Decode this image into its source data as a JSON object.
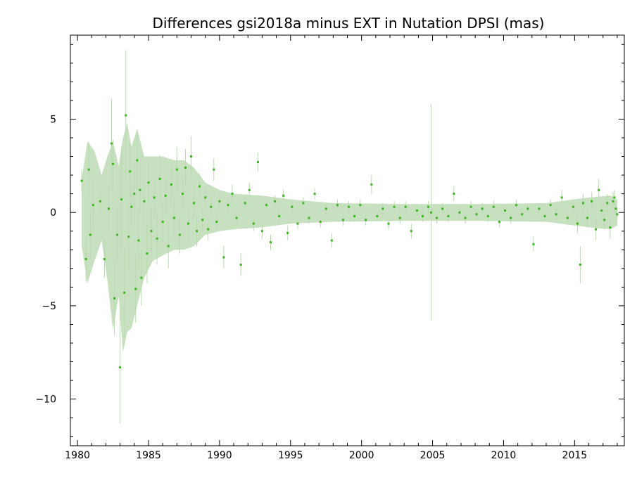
{
  "chart_data": {
    "type": "scatter",
    "title": "Differences gsi2018a minus EXT in Nutation DPSI (mas)",
    "xlabel": "",
    "ylabel": "",
    "xlim": [
      1979.5,
      2018.5
    ],
    "ylim": [
      -12.5,
      9.5
    ],
    "x_ticks": [
      1980,
      1985,
      1990,
      1995,
      2000,
      2005,
      2010,
      2015
    ],
    "x_tick_labels": [
      "1980",
      "1985",
      "1990",
      "1995",
      "2000",
      "2005",
      "2010",
      "2015"
    ],
    "y_ticks": [
      -10,
      -5,
      0,
      5
    ],
    "y_tick_labels": [
      "−10",
      "−5",
      "0",
      "5"
    ],
    "grid": false,
    "legend": "none",
    "colors": {
      "point": "#3cb521",
      "error_bar": "#b9d9b0"
    },
    "envelope": [
      [
        1980.3,
        -1.8,
        1.8
      ],
      [
        1980.7,
        -3.8,
        3.8
      ],
      [
        1981.2,
        -2.6,
        3.3
      ],
      [
        1981.7,
        -1.5,
        2.0
      ],
      [
        1982.1,
        -3.6,
        3.0
      ],
      [
        1982.5,
        -6.3,
        3.8
      ],
      [
        1982.9,
        -4.5,
        2.5
      ],
      [
        1983.2,
        -7.5,
        4.0
      ],
      [
        1983.5,
        -6.4,
        4.8
      ],
      [
        1983.8,
        -6.2,
        3.5
      ],
      [
        1984.2,
        -5.0,
        4.5
      ],
      [
        1984.7,
        -3.5,
        3.0
      ],
      [
        1985.3,
        -2.6,
        3.0
      ],
      [
        1986.0,
        -2.3,
        3.0
      ],
      [
        1986.8,
        -2.0,
        2.8
      ],
      [
        1987.5,
        -2.0,
        2.8
      ],
      [
        1988.2,
        -1.8,
        2.4
      ],
      [
        1989.0,
        -1.2,
        1.6
      ],
      [
        1990.0,
        -1.0,
        1.2
      ],
      [
        1991.0,
        -0.9,
        1.0
      ],
      [
        1993.0,
        -0.8,
        0.9
      ],
      [
        1995.0,
        -0.6,
        0.7
      ],
      [
        1998.0,
        -0.5,
        0.5
      ],
      [
        2003.0,
        -0.45,
        0.45
      ],
      [
        2008.0,
        -0.45,
        0.45
      ],
      [
        2013.0,
        -0.5,
        0.5
      ],
      [
        2016.0,
        -0.8,
        0.8
      ],
      [
        2017.5,
        -0.9,
        0.9
      ],
      [
        2018.0,
        -0.7,
        0.7
      ]
    ],
    "series": [
      {
        "points": [
          [
            1980.3,
            1.7,
            0.6
          ],
          [
            1980.6,
            -2.5,
            1.2
          ],
          [
            1980.8,
            2.3,
            1.5
          ],
          [
            1980.9,
            -1.2,
            1.3
          ],
          [
            1981.1,
            0.4,
            1.2
          ],
          [
            1981.6,
            0.6,
            0.7
          ],
          [
            1981.9,
            -2.5,
            1.0
          ],
          [
            1982.2,
            0.2,
            1.2
          ],
          [
            1982.4,
            3.7,
            2.4
          ],
          [
            1982.5,
            2.6,
            1.3
          ],
          [
            1982.6,
            -4.6,
            2.0
          ],
          [
            1982.8,
            -1.2,
            1.5
          ],
          [
            1983.0,
            -8.3,
            3.0
          ],
          [
            1983.1,
            0.7,
            2.8
          ],
          [
            1983.3,
            -4.3,
            2.4
          ],
          [
            1983.4,
            5.2,
            3.5
          ],
          [
            1983.6,
            -1.3,
            1.8
          ],
          [
            1983.7,
            2.2,
            1.5
          ],
          [
            1983.8,
            0.3,
            1.2
          ],
          [
            1984.0,
            1.0,
            1.6
          ],
          [
            1984.1,
            -4.1,
            1.8
          ],
          [
            1984.2,
            2.8,
            1.6
          ],
          [
            1984.3,
            -1.5,
            1.6
          ],
          [
            1984.4,
            1.2,
            1.3
          ],
          [
            1984.5,
            -3.5,
            1.5
          ],
          [
            1984.7,
            0.6,
            1.3
          ],
          [
            1984.9,
            -2.2,
            1.6
          ],
          [
            1985.0,
            1.6,
            1.2
          ],
          [
            1985.2,
            -1.0,
            1.3
          ],
          [
            1985.4,
            0.8,
            1.1
          ],
          [
            1985.6,
            -1.4,
            1.4
          ],
          [
            1985.8,
            1.8,
            1.3
          ],
          [
            1986.0,
            -0.5,
            1.1
          ],
          [
            1986.2,
            0.9,
            1.0
          ],
          [
            1986.4,
            -1.8,
            1.2
          ],
          [
            1986.6,
            1.5,
            1.1
          ],
          [
            1986.8,
            -0.3,
            1.0
          ],
          [
            1987.0,
            2.3,
            1.2
          ],
          [
            1987.2,
            -1.2,
            1.0
          ],
          [
            1987.4,
            1.0,
            0.9
          ],
          [
            1987.6,
            2.4,
            1.0
          ],
          [
            1987.8,
            -0.6,
            0.9
          ],
          [
            1988.0,
            3.0,
            1.1
          ],
          [
            1988.2,
            0.5,
            0.8
          ],
          [
            1988.4,
            -1.0,
            0.8
          ],
          [
            1988.6,
            1.4,
            0.7
          ],
          [
            1988.8,
            -0.4,
            0.6
          ],
          [
            1989.0,
            0.8,
            0.6
          ],
          [
            1989.2,
            -0.9,
            0.6
          ],
          [
            1989.4,
            0.3,
            0.5
          ],
          [
            1989.6,
            2.3,
            0.6
          ],
          [
            1989.8,
            -0.5,
            0.5
          ],
          [
            1990.0,
            0.6,
            0.5
          ],
          [
            1990.3,
            -2.4,
            0.6
          ],
          [
            1990.6,
            0.4,
            0.4
          ],
          [
            1990.9,
            1.0,
            0.5
          ],
          [
            1991.2,
            -0.3,
            0.4
          ],
          [
            1991.5,
            -2.8,
            0.6
          ],
          [
            1991.8,
            0.5,
            0.4
          ],
          [
            1992.1,
            1.2,
            0.4
          ],
          [
            1992.4,
            -0.6,
            0.4
          ],
          [
            1992.7,
            2.7,
            0.5
          ],
          [
            1993.0,
            -1.0,
            0.4
          ],
          [
            1993.3,
            0.4,
            0.3
          ],
          [
            1993.6,
            -1.6,
            0.4
          ],
          [
            1993.9,
            0.6,
            0.3
          ],
          [
            1994.2,
            -0.2,
            0.3
          ],
          [
            1994.5,
            0.9,
            0.3
          ],
          [
            1994.8,
            -1.1,
            0.4
          ],
          [
            1995.1,
            0.3,
            0.3
          ],
          [
            1995.5,
            -0.6,
            0.3
          ],
          [
            1995.9,
            0.5,
            0.3
          ],
          [
            1996.3,
            -0.3,
            0.3
          ],
          [
            1996.7,
            1.0,
            0.3
          ],
          [
            1997.1,
            -0.5,
            0.3
          ],
          [
            1997.5,
            0.2,
            0.3
          ],
          [
            1997.9,
            -1.5,
            0.4
          ],
          [
            1998.3,
            0.4,
            0.3
          ],
          [
            1998.7,
            -0.4,
            0.3
          ],
          [
            1999.1,
            0.3,
            0.3
          ],
          [
            1999.5,
            -0.2,
            0.3
          ],
          [
            1999.9,
            0.4,
            0.3
          ],
          [
            2000.3,
            -0.4,
            0.3
          ],
          [
            2000.7,
            1.5,
            0.5
          ],
          [
            2001.1,
            -0.2,
            0.3
          ],
          [
            2001.5,
            0.2,
            0.3
          ],
          [
            2001.9,
            -0.6,
            0.3
          ],
          [
            2002.3,
            0.3,
            0.3
          ],
          [
            2002.7,
            -0.3,
            0.3
          ],
          [
            2003.1,
            0.3,
            0.3
          ],
          [
            2003.5,
            -1.0,
            0.4
          ],
          [
            2003.9,
            0.1,
            0.3
          ],
          [
            2004.3,
            -0.2,
            0.3
          ],
          [
            2004.7,
            0.3,
            0.3
          ],
          [
            2004.9,
            0.0,
            5.8
          ],
          [
            2005.3,
            -0.3,
            0.3
          ],
          [
            2005.7,
            0.2,
            0.3
          ],
          [
            2006.1,
            -0.2,
            0.3
          ],
          [
            2006.5,
            1.0,
            0.4
          ],
          [
            2006.9,
            0.0,
            0.3
          ],
          [
            2007.3,
            -0.3,
            0.3
          ],
          [
            2007.7,
            0.3,
            0.3
          ],
          [
            2008.1,
            -0.1,
            0.3
          ],
          [
            2008.5,
            0.2,
            0.3
          ],
          [
            2008.9,
            -0.2,
            0.3
          ],
          [
            2009.3,
            0.3,
            0.3
          ],
          [
            2009.7,
            -0.5,
            0.3
          ],
          [
            2010.1,
            0.1,
            0.3
          ],
          [
            2010.5,
            -0.3,
            0.3
          ],
          [
            2010.9,
            0.4,
            0.3
          ],
          [
            2011.3,
            -0.1,
            0.3
          ],
          [
            2011.7,
            0.2,
            0.3
          ],
          [
            2012.1,
            -1.7,
            0.4
          ],
          [
            2012.5,
            0.2,
            0.3
          ],
          [
            2012.9,
            -0.2,
            0.3
          ],
          [
            2013.3,
            0.4,
            0.3
          ],
          [
            2013.7,
            -0.1,
            0.3
          ],
          [
            2014.1,
            0.8,
            0.4
          ],
          [
            2014.5,
            -0.3,
            0.4
          ],
          [
            2014.9,
            0.3,
            0.4
          ],
          [
            2015.2,
            -0.6,
            0.5
          ],
          [
            2015.4,
            -2.8,
            1.0
          ],
          [
            2015.6,
            0.5,
            0.5
          ],
          [
            2015.9,
            -0.3,
            0.5
          ],
          [
            2016.2,
            0.6,
            0.5
          ],
          [
            2016.5,
            -0.9,
            0.6
          ],
          [
            2016.7,
            1.2,
            0.6
          ],
          [
            2016.9,
            0.1,
            0.5
          ],
          [
            2017.1,
            -0.4,
            0.5
          ],
          [
            2017.3,
            0.5,
            0.5
          ],
          [
            2017.5,
            -0.8,
            0.6
          ],
          [
            2017.7,
            0.6,
            0.5
          ],
          [
            2017.8,
            0.8,
            0.4
          ],
          [
            2017.9,
            0.2,
            0.4
          ],
          [
            2018.0,
            -0.1,
            0.3
          ]
        ]
      }
    ]
  }
}
